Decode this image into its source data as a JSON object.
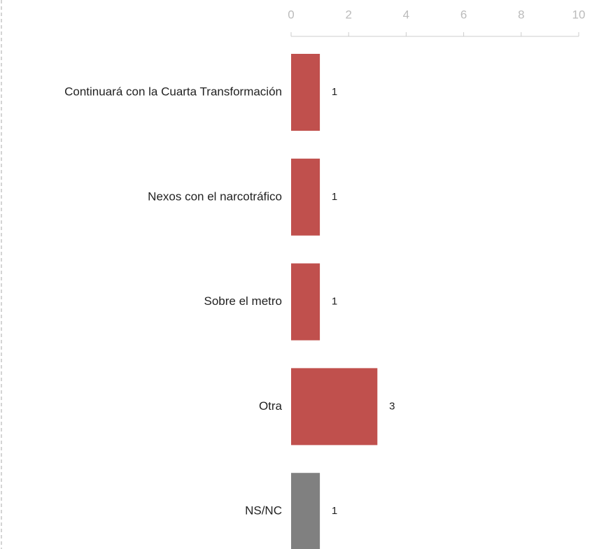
{
  "chart_data": {
    "type": "bar",
    "orientation": "horizontal",
    "categories": [
      "Continuará con la Cuarta Transformación",
      "Nexos con el narcotráfico",
      "Sobre el metro",
      "Otra",
      "NS/NC"
    ],
    "values": [
      1,
      1,
      1,
      3,
      1
    ],
    "colors": [
      "#c0504d",
      "#c0504d",
      "#c0504d",
      "#c0504d",
      "#808080"
    ],
    "xlim": [
      0,
      10
    ],
    "xticks": [
      0,
      2,
      4,
      6,
      8,
      10
    ]
  }
}
